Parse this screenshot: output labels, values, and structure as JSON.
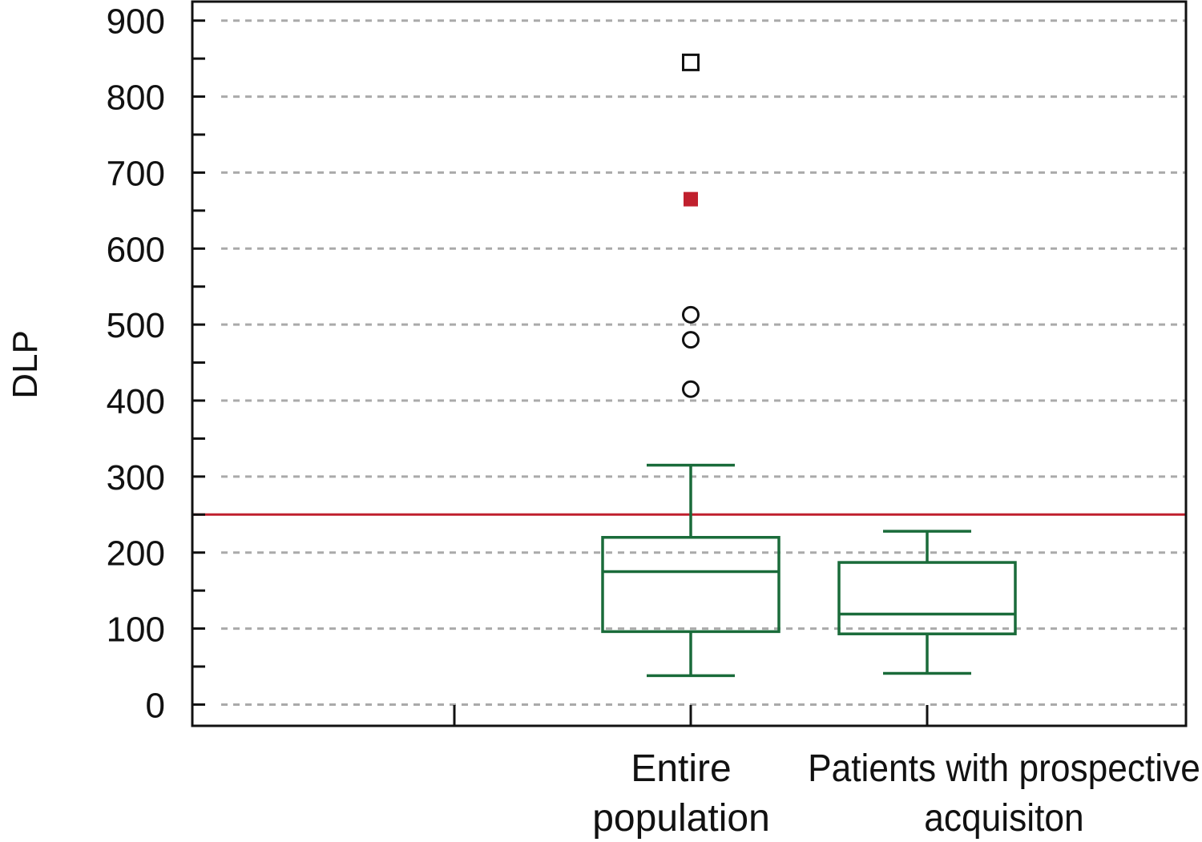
{
  "chart_data": {
    "type": "box",
    "ylabel": "DLP",
    "xlabel": "",
    "ylim": [
      -28,
      925
    ],
    "yticks": [
      0,
      100,
      200,
      300,
      400,
      500,
      600,
      700,
      800,
      900
    ],
    "grid": true,
    "reference_line": {
      "y": 250,
      "color": "#c0202e"
    },
    "categories": [
      {
        "label_lines": [
          "Entire",
          "population"
        ]
      },
      {
        "label_lines": [
          "Patients with prospective",
          "acquisiton"
        ]
      }
    ],
    "boxes": [
      {
        "whisker_low": 38,
        "q1": 96,
        "median": 175,
        "q3": 220,
        "whisker_high": 315,
        "outliers": [
          {
            "y": 415,
            "marker": "circle"
          },
          {
            "y": 480,
            "marker": "circle"
          },
          {
            "y": 513,
            "marker": "circle"
          },
          {
            "y": 665,
            "marker": "filled-square"
          },
          {
            "y": 845,
            "marker": "square"
          }
        ]
      },
      {
        "whisker_low": 41,
        "q1": 93,
        "median": 119,
        "q3": 187,
        "whisker_high": 228,
        "outliers": []
      }
    ],
    "colors": {
      "box": "#1a6b3a",
      "reference_line": "#c0202e",
      "far_outlier_fill": "#c0202e",
      "outlier": "#111111",
      "grid": "#aaaaaa"
    }
  }
}
